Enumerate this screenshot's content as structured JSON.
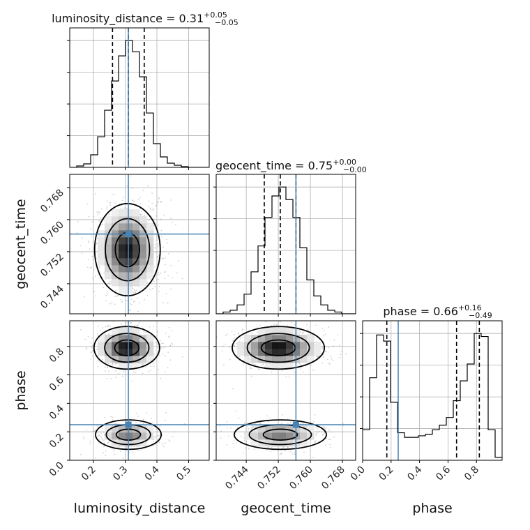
{
  "chart_data": {
    "type": "corner",
    "parameters": [
      "luminosity_distance",
      "geocent_time",
      "phase"
    ],
    "axis_labels": {
      "x": [
        "luminosity_distance",
        "geocent_time",
        "phase"
      ],
      "y": [
        "geocent_time",
        "phase"
      ]
    },
    "colors": {
      "truth": "#4682b4",
      "histogram": "#000000",
      "grid": "#b0b0b0",
      "quantile": "#000000"
    },
    "truths": {
      "luminosity_distance": 0.31,
      "geocent_time": 0.7564,
      "phase": 0.25
    },
    "ranges": {
      "luminosity_distance": [
        0.125,
        0.565
      ],
      "geocent_time": [
        0.7365,
        0.7713
      ],
      "phase": [
        0.0,
        0.98
      ]
    },
    "ticks": {
      "luminosity_distance": {
        "values": [
          0.2,
          0.3,
          0.4,
          0.5
        ],
        "labels": [
          "0.2",
          "0.3",
          "0.4",
          "0.5"
        ]
      },
      "geocent_time": {
        "values": [
          0.744,
          0.752,
          0.76,
          0.768
        ],
        "labels": [
          "0.744",
          "0.752",
          "0.760",
          "0.768"
        ]
      },
      "phase": {
        "values": [
          0.0,
          0.2,
          0.4,
          0.6,
          0.8
        ],
        "labels": [
          "0.0",
          "0.2",
          "0.4",
          "0.6",
          "0.8"
        ]
      }
    },
    "marginals": [
      {
        "parameter": "luminosity_distance",
        "title_main": "luminosity_distance = 0.31",
        "title_sup": "+0.05",
        "title_sub": "−0.05",
        "quantiles": [
          0.26,
          0.31,
          0.36
        ],
        "bin_edges": [
          0.125,
          0.147,
          0.169,
          0.191,
          0.213,
          0.235,
          0.257,
          0.279,
          0.301,
          0.323,
          0.345,
          0.367,
          0.389,
          0.411,
          0.433,
          0.455,
          0.477,
          0.499,
          0.521,
          0.543,
          0.565
        ],
        "counts": [
          0,
          2,
          5,
          18,
          44,
          82,
          124,
          160,
          182,
          166,
          130,
          78,
          34,
          15,
          6,
          3,
          1,
          0,
          0,
          0
        ]
      },
      {
        "parameter": "geocent_time",
        "title_main": "geocent_time = 0.75",
        "title_sup": "+0.00",
        "title_sub": "−0.00",
        "quantiles": [
          0.7485,
          0.7525,
          0.7564
        ],
        "bin_edges": [
          0.7365,
          0.73824,
          0.73998,
          0.74172,
          0.74346,
          0.7452,
          0.74694,
          0.74868,
          0.75042,
          0.75216,
          0.7539,
          0.75564,
          0.75738,
          0.75912,
          0.76086,
          0.7626,
          0.76434,
          0.76608,
          0.76782,
          0.76956,
          0.7713
        ],
        "counts": [
          0,
          2,
          4,
          10,
          22,
          47,
          76,
          108,
          132,
          142,
          128,
          108,
          74,
          38,
          20,
          10,
          4,
          2,
          0,
          0
        ]
      },
      {
        "parameter": "phase",
        "title_main": "phase = 0.66",
        "title_sup": "+0.16",
        "title_sub": "−0.49",
        "quantiles": [
          0.17,
          0.66,
          0.82
        ],
        "bin_edges": [
          0.0,
          0.049,
          0.098,
          0.147,
          0.196,
          0.245,
          0.294,
          0.343,
          0.392,
          0.441,
          0.49,
          0.539,
          0.588,
          0.637,
          0.686,
          0.735,
          0.784,
          0.833,
          0.882,
          0.931,
          0.98
        ],
        "counts": [
          20,
          54,
          82,
          78,
          38,
          18,
          15,
          15,
          16,
          17,
          20,
          23,
          28,
          39,
          52,
          63,
          83,
          81,
          20,
          2
        ]
      }
    ],
    "joint": [
      {
        "x": "luminosity_distance",
        "y": "geocent_time",
        "modes": [
          {
            "x": 0.307,
            "y": 0.7525,
            "sx": 0.045,
            "sy": 0.005,
            "w": 1.0
          }
        ]
      },
      {
        "x": "luminosity_distance",
        "y": "phase",
        "modes": [
          {
            "x": 0.305,
            "y": 0.79,
            "sx": 0.045,
            "sy": 0.065,
            "w": 0.62
          },
          {
            "x": 0.31,
            "y": 0.18,
            "sx": 0.045,
            "sy": 0.045,
            "w": 0.38
          }
        ]
      },
      {
        "x": "geocent_time",
        "y": "phase",
        "modes": [
          {
            "x": 0.752,
            "y": 0.79,
            "sx": 0.005,
            "sy": 0.065,
            "w": 0.62
          },
          {
            "x": 0.7525,
            "y": 0.18,
            "sx": 0.005,
            "sy": 0.045,
            "w": 0.38
          }
        ]
      }
    ]
  }
}
